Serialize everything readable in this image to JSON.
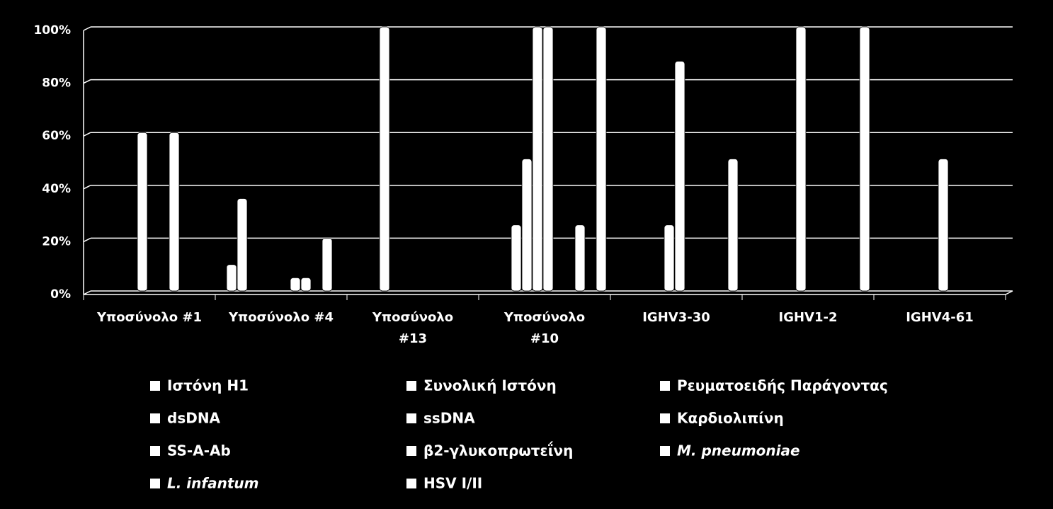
{
  "chart_data": {
    "type": "bar",
    "categories": [
      "Υποσύνολο #1",
      "Υποσύνολο #4",
      "Υποσύνολο\n#13",
      "Υποσύνολο\n#10",
      "IGHV3-30",
      "IGHV1-2",
      "IGHV4-61"
    ],
    "series": [
      {
        "name": "Ιστόνη H1",
        "color": "#ffffff",
        "values": [
          0,
          10,
          0,
          0,
          0,
          0,
          0
        ]
      },
      {
        "name": "Συνολική Ιστόνη",
        "color": "#ffffff",
        "values": [
          0,
          35,
          0,
          0,
          0,
          0,
          0
        ]
      },
      {
        "name": "Ρευματοειδής Παράγοντας",
        "color": "#ffffff",
        "values": [
          0,
          0,
          100,
          25,
          0,
          0,
          0
        ]
      },
      {
        "name": "dsDNA",
        "color": "#ffffff",
        "values": [
          0,
          0,
          0,
          50,
          0,
          0,
          0
        ]
      },
      {
        "name": "ssDNA",
        "color": "#ffffff",
        "values": [
          60,
          0,
          0,
          100,
          25,
          100,
          0
        ]
      },
      {
        "name": "Καρδιολιπίνη",
        "color": "#ffffff",
        "values": [
          0,
          0,
          0,
          100,
          87,
          0,
          50
        ]
      },
      {
        "name": "SS-A-Ab",
        "color": "#ffffff",
        "values": [
          0,
          5,
          0,
          0,
          0,
          0,
          0
        ]
      },
      {
        "name": "β2-γλυκοπρωτεΐνη",
        "color": "#ffffff",
        "values": [
          60,
          5,
          0,
          0,
          0,
          0,
          0
        ]
      },
      {
        "name": "M. pneumoniae",
        "color": "#ffffff",
        "italic": true,
        "values": [
          0,
          0,
          0,
          25,
          0,
          0,
          0
        ]
      },
      {
        "name": "L. infantum",
        "color": "#ffffff",
        "italic": true,
        "values": [
          0,
          20,
          0,
          0,
          0,
          0,
          0
        ]
      },
      {
        "name": "HSV I/II",
        "color": "#ffffff",
        "values": [
          0,
          0,
          0,
          100,
          50,
          100,
          0
        ]
      }
    ],
    "ylim": [
      0,
      100
    ],
    "yticks": [
      {
        "value": 0,
        "label": "0%"
      },
      {
        "value": 20,
        "label": "20%"
      },
      {
        "value": 40,
        "label": "40%"
      },
      {
        "value": 60,
        "label": "60%"
      },
      {
        "value": 80,
        "label": "80%"
      },
      {
        "value": 100,
        "label": "100%"
      }
    ],
    "grid": true,
    "legend": "bottom"
  }
}
